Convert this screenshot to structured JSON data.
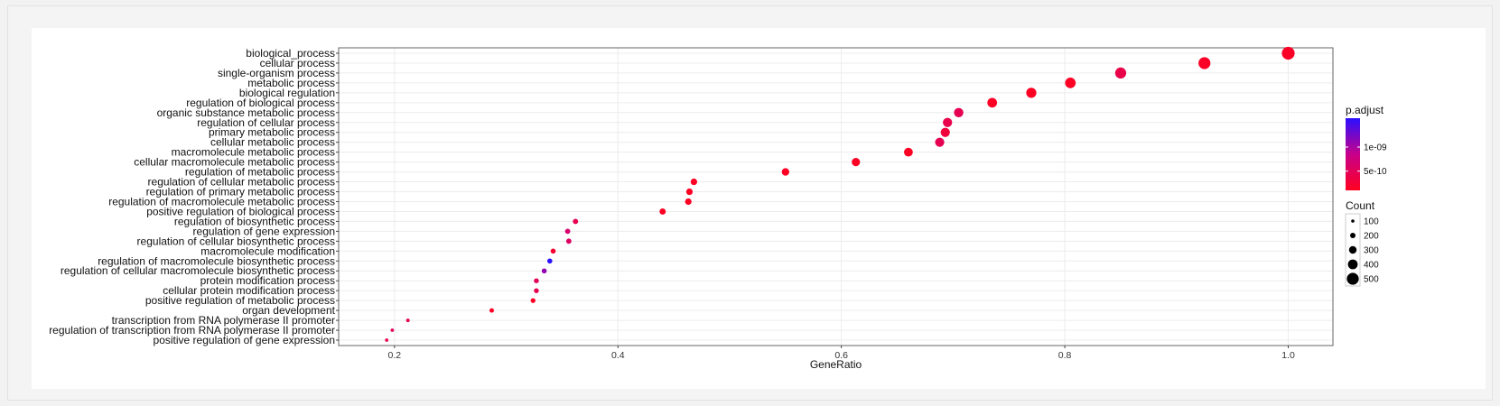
{
  "chart_data": {
    "type": "scatter",
    "xlabel": "GeneRatio",
    "ylabel": "",
    "title": "",
    "xlim": [
      0.15,
      1.04
    ],
    "xticks": [
      0.2,
      0.4,
      0.6,
      0.8,
      1.0
    ],
    "xtick_labels": [
      "0.2",
      "0.4",
      "0.6",
      "0.8",
      "1.0"
    ],
    "grid": true,
    "color_legend": {
      "title": "p.adjust",
      "low_color": "#ff0020",
      "high_color": "#2a10ff",
      "range": [
        1e-10,
        1.6e-09
      ],
      "ticks": [
        1e-09,
        5e-10
      ],
      "tick_labels": [
        "1e-09",
        "5e-10"
      ],
      "placement": "right"
    },
    "size_legend": {
      "title": "Count",
      "values": [
        100,
        200,
        300,
        400,
        500
      ],
      "labels": [
        "100",
        "200",
        "300",
        "400",
        "500"
      ],
      "placement": "right"
    },
    "terms": [
      {
        "term": "biological_process",
        "ratio": 1.0,
        "count": 540,
        "padj": 1.5e-10
      },
      {
        "term": "cellular process",
        "ratio": 0.925,
        "count": 500,
        "padj": 1.5e-10
      },
      {
        "term": "single-organism process",
        "ratio": 0.85,
        "count": 460,
        "padj": 4e-10
      },
      {
        "term": "metabolic process",
        "ratio": 0.805,
        "count": 435,
        "padj": 1.3e-10
      },
      {
        "term": "biological regulation",
        "ratio": 0.77,
        "count": 415,
        "padj": 1.3e-10
      },
      {
        "term": "regulation of biological process",
        "ratio": 0.735,
        "count": 395,
        "padj": 1.3e-10
      },
      {
        "term": "organic substance metabolic process",
        "ratio": 0.705,
        "count": 380,
        "padj": 4.5e-10
      },
      {
        "term": "regulation of cellular process",
        "ratio": 0.695,
        "count": 375,
        "padj": 4e-10
      },
      {
        "term": "primary metabolic process",
        "ratio": 0.693,
        "count": 373,
        "padj": 3e-10
      },
      {
        "term": "cellular metabolic process",
        "ratio": 0.688,
        "count": 370,
        "padj": 4.5e-10
      },
      {
        "term": "macromolecule metabolic process",
        "ratio": 0.66,
        "count": 355,
        "padj": 1.3e-10
      },
      {
        "term": "cellular macromolecule metabolic process",
        "ratio": 0.613,
        "count": 330,
        "padj": 1.3e-10
      },
      {
        "term": "regulation of metabolic process",
        "ratio": 0.55,
        "count": 296,
        "padj": 1.3e-10
      },
      {
        "term": "regulation of cellular metabolic process",
        "ratio": 0.468,
        "count": 252,
        "padj": 1.3e-10
      },
      {
        "term": "regulation of primary metabolic process",
        "ratio": 0.464,
        "count": 250,
        "padj": 1.3e-10
      },
      {
        "term": "regulation of macromolecule metabolic process",
        "ratio": 0.463,
        "count": 249,
        "padj": 1.3e-10
      },
      {
        "term": "positive regulation of biological process",
        "ratio": 0.44,
        "count": 237,
        "padj": 1.3e-10
      },
      {
        "term": "regulation of biosynthetic process",
        "ratio": 0.362,
        "count": 195,
        "padj": 4.5e-10
      },
      {
        "term": "regulation of gene expression",
        "ratio": 0.355,
        "count": 191,
        "padj": 6.5e-10
      },
      {
        "term": "regulation of cellular biosynthetic process",
        "ratio": 0.356,
        "count": 192,
        "padj": 5.5e-10
      },
      {
        "term": "macromolecule modification",
        "ratio": 0.342,
        "count": 184,
        "padj": 2e-10
      },
      {
        "term": "regulation of macromolecule biosynthetic process",
        "ratio": 0.339,
        "count": 182,
        "padj": 1.6e-09
      },
      {
        "term": "regulation of cellular macromolecule biosynthetic process",
        "ratio": 0.334,
        "count": 180,
        "padj": 1.1e-09
      },
      {
        "term": "protein modification process",
        "ratio": 0.327,
        "count": 176,
        "padj": 5e-10
      },
      {
        "term": "cellular protein modification process",
        "ratio": 0.327,
        "count": 176,
        "padj": 4.5e-10
      },
      {
        "term": "positive regulation of metabolic process",
        "ratio": 0.324,
        "count": 174,
        "padj": 1.3e-10
      },
      {
        "term": "organ development",
        "ratio": 0.287,
        "count": 155,
        "padj": 1.3e-10
      },
      {
        "term": "transcription from RNA polymerase II promoter",
        "ratio": 0.212,
        "count": 114,
        "padj": 4.5e-10
      },
      {
        "term": "regulation of transcription from RNA polymerase II promoter",
        "ratio": 0.198,
        "count": 107,
        "padj": 5e-10
      },
      {
        "term": "positive regulation of gene expression",
        "ratio": 0.193,
        "count": 104,
        "padj": 4e-10
      }
    ]
  }
}
